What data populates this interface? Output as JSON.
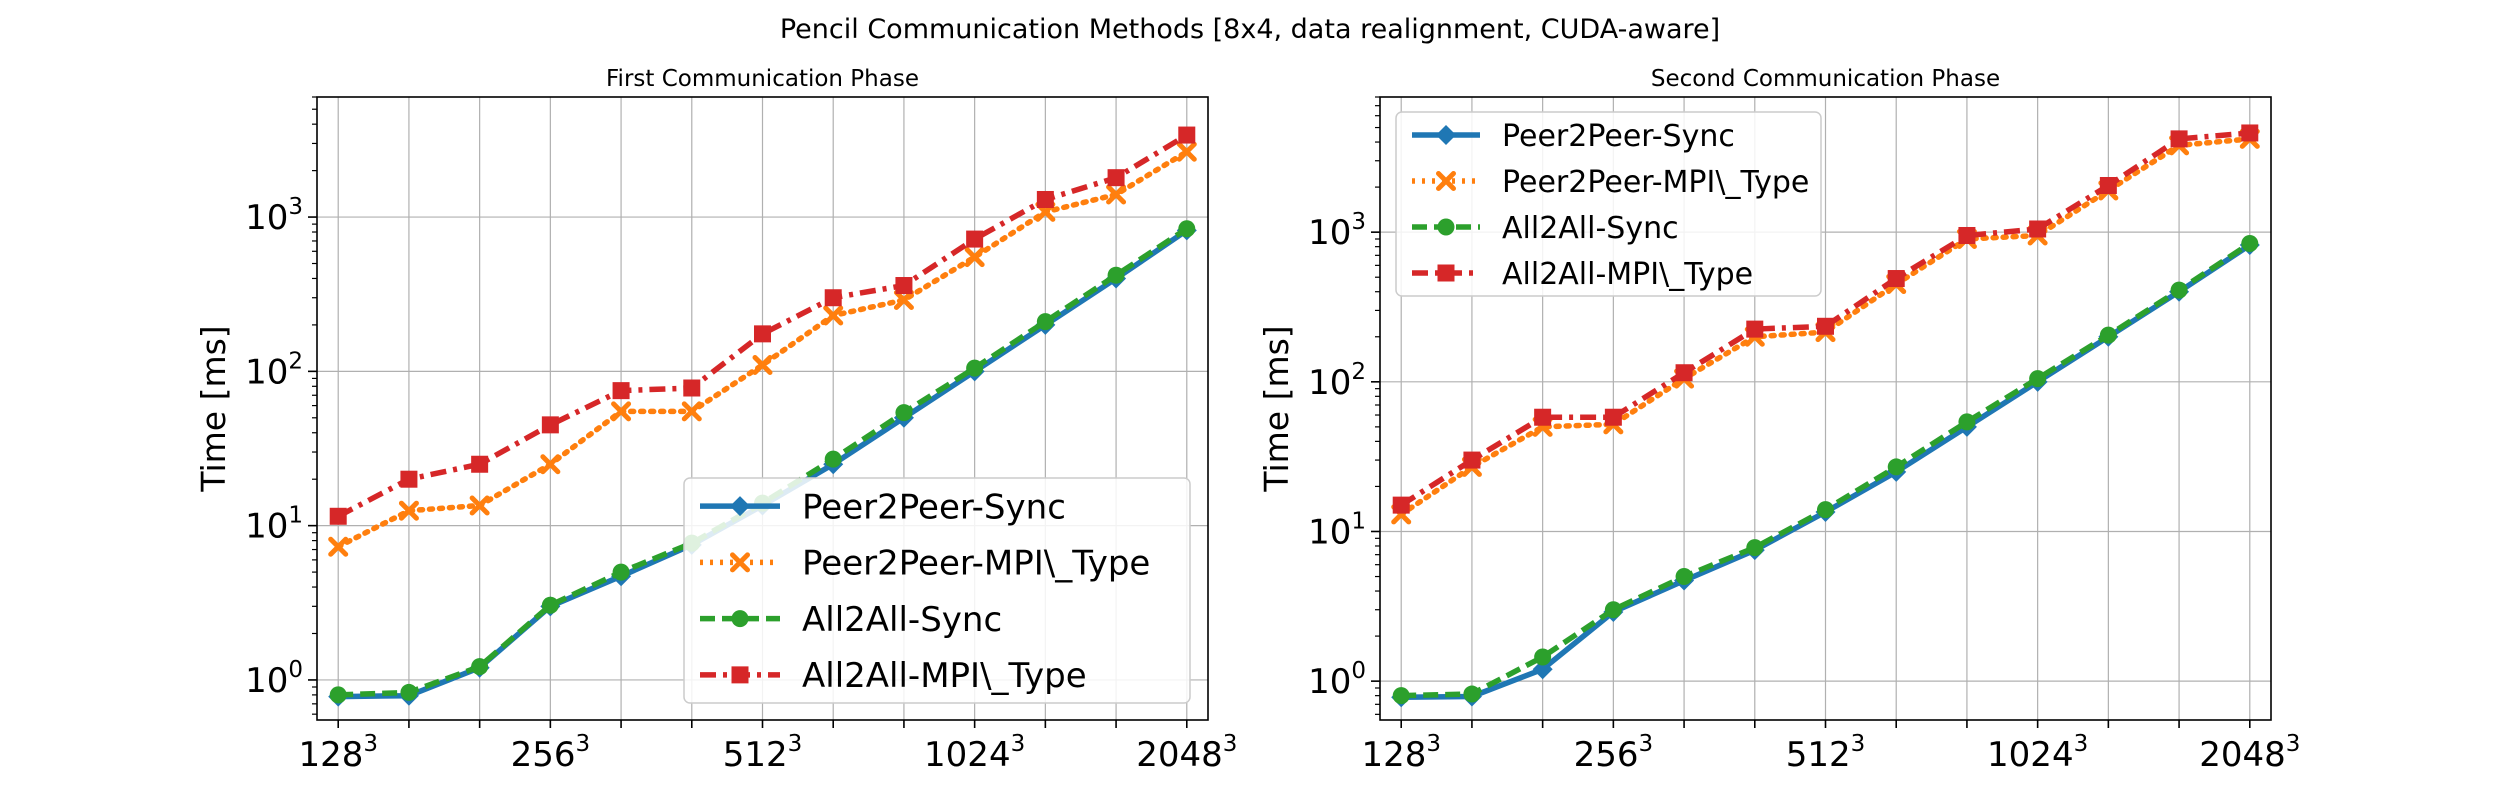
{
  "figure": {
    "suptitle": "Pencil Communication Methods [8x4, data realignment, CUDA-aware]"
  },
  "chart_data": [
    {
      "type": "line",
      "title": "First Communication Phase",
      "xlabel": "",
      "ylabel": "Time [ms]",
      "yscale": "log",
      "ylim": [
        0.55,
        6000
      ],
      "xlim": [
        0.7,
        13.3
      ],
      "x": [
        1,
        2,
        3,
        4,
        5,
        6,
        7,
        8,
        9,
        10,
        11,
        12,
        13
      ],
      "xticks": [
        {
          "pos": 1,
          "base": "128",
          "exp": "3"
        },
        {
          "pos": 4,
          "base": "256",
          "exp": "3"
        },
        {
          "pos": 7,
          "base": "512",
          "exp": "3"
        },
        {
          "pos": 10,
          "base": "1024",
          "exp": "3"
        },
        {
          "pos": 13,
          "base": "2048",
          "exp": "3"
        }
      ],
      "yticks": [
        {
          "value": 1,
          "base": "10",
          "exp": "0"
        },
        {
          "value": 10,
          "base": "10",
          "exp": "1"
        },
        {
          "value": 100,
          "base": "10",
          "exp": "2"
        },
        {
          "value": 1000,
          "base": "10",
          "exp": "3"
        }
      ],
      "grid": true,
      "legend": "lower-right",
      "series": [
        {
          "name": "Peer2Peer-Sync",
          "color": "#1f77b4",
          "dash": "solid",
          "marker": "diamond",
          "values": [
            0.78,
            0.79,
            1.2,
            3.0,
            4.7,
            7.5,
            13.5,
            25,
            50,
            100,
            200,
            400,
            820
          ]
        },
        {
          "name": "Peer2Peer-MPI\\_Type",
          "color": "#ff7f0e",
          "dash": "dotted",
          "marker": "x",
          "values": [
            7.3,
            12.5,
            13.5,
            25,
            55,
            55,
            110,
            230,
            290,
            550,
            1080,
            1400,
            2650
          ]
        },
        {
          "name": "All2All-Sync",
          "color": "#2ca02c",
          "dash": "dashed",
          "marker": "circle",
          "values": [
            0.8,
            0.83,
            1.22,
            3.05,
            5.0,
            7.7,
            14,
            27,
            54,
            105,
            210,
            420,
            840
          ]
        },
        {
          "name": "All2All-MPI\\_Type",
          "color": "#d62728",
          "dash": "dashdot",
          "marker": "square",
          "values": [
            11.5,
            20,
            25,
            45,
            75,
            78,
            175,
            300,
            360,
            720,
            1300,
            1800,
            3400
          ]
        }
      ]
    },
    {
      "type": "line",
      "title": "Second Communication Phase",
      "xlabel": "",
      "ylabel": "Time [ms]",
      "yscale": "log",
      "ylim": [
        0.55,
        8000
      ],
      "xlim": [
        0.7,
        13.3
      ],
      "x": [
        1,
        2,
        3,
        4,
        5,
        6,
        7,
        8,
        9,
        10,
        11,
        12,
        13
      ],
      "xticks": [
        {
          "pos": 1,
          "base": "128",
          "exp": "3"
        },
        {
          "pos": 4,
          "base": "256",
          "exp": "3"
        },
        {
          "pos": 7,
          "base": "512",
          "exp": "3"
        },
        {
          "pos": 10,
          "base": "1024",
          "exp": "3"
        },
        {
          "pos": 13,
          "base": "2048",
          "exp": "3"
        }
      ],
      "yticks": [
        {
          "value": 1,
          "base": "10",
          "exp": "0"
        },
        {
          "value": 10,
          "base": "10",
          "exp": "1"
        },
        {
          "value": 100,
          "base": "10",
          "exp": "2"
        },
        {
          "value": 1000,
          "base": "10",
          "exp": "3"
        }
      ],
      "grid": true,
      "legend": "upper-left",
      "series": [
        {
          "name": "Peer2Peer-Sync",
          "color": "#1f77b4",
          "dash": "solid",
          "marker": "diamond",
          "values": [
            0.78,
            0.79,
            1.2,
            2.9,
            4.7,
            7.5,
            13.5,
            25,
            50,
            100,
            200,
            400,
            820
          ]
        },
        {
          "name": "Peer2Peer-MPI\\_Type",
          "color": "#ff7f0e",
          "dash": "dotted",
          "marker": "x",
          "values": [
            13,
            27,
            50,
            52,
            105,
            200,
            215,
            450,
            900,
            950,
            1900,
            3800,
            4200
          ]
        },
        {
          "name": "All2All-Sync",
          "color": "#2ca02c",
          "dash": "dashed",
          "marker": "circle",
          "values": [
            0.8,
            0.82,
            1.45,
            3.0,
            5.0,
            7.8,
            14,
            27,
            54,
            105,
            205,
            410,
            840
          ]
        },
        {
          "name": "All2All-MPI\\_Type",
          "color": "#d62728",
          "dash": "dashdot",
          "marker": "square",
          "values": [
            15,
            30,
            58,
            58,
            115,
            225,
            235,
            490,
            950,
            1050,
            2050,
            4200,
            4600
          ]
        }
      ]
    }
  ]
}
